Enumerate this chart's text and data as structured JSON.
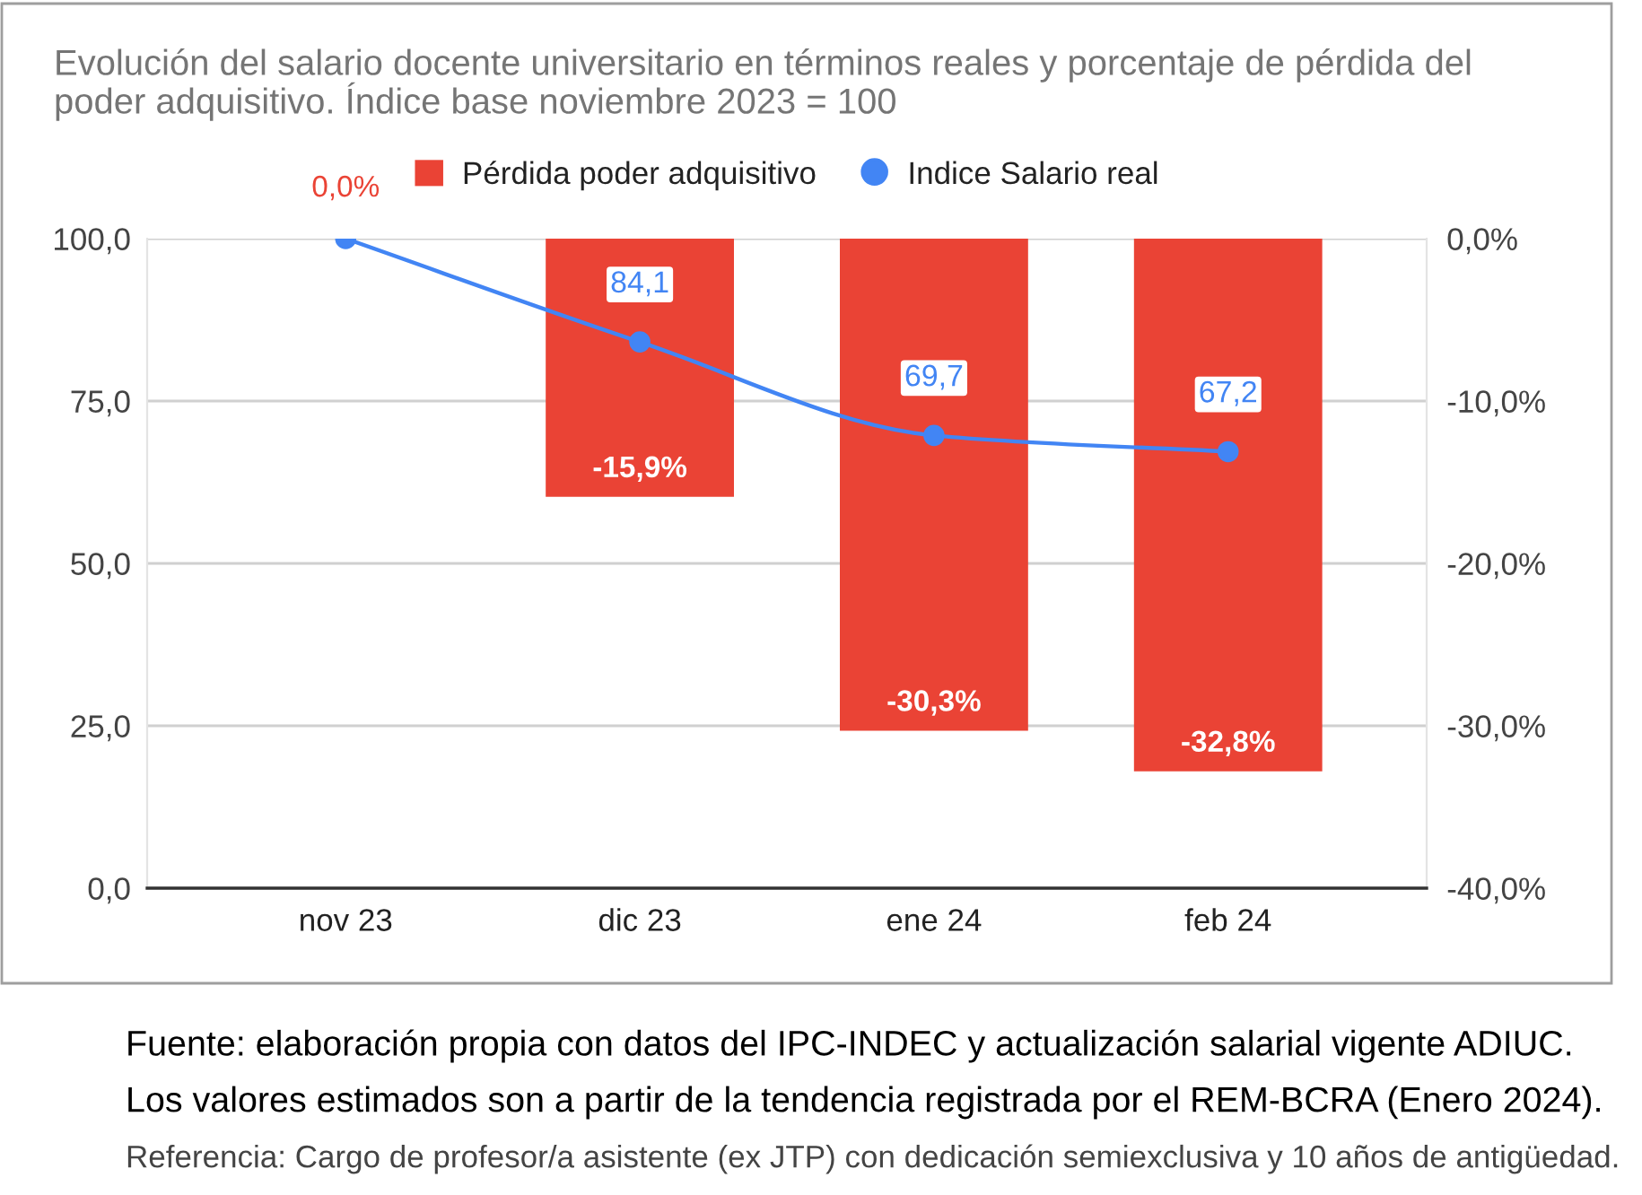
{
  "chart_data": {
    "type": "bar",
    "title": "Evolución del salario docente universitario en términos reales y porcentaje de pérdida del poder adquisitivo. Índice base noviembre 2023 = 100",
    "categories": [
      "nov 23",
      "dic 23",
      "ene 24",
      "feb 24"
    ],
    "series": [
      {
        "name": "Pérdida poder adquisitivo",
        "axis": "y2",
        "color": "#ea4335",
        "values": [
          0,
          -15.9,
          -30.3,
          -32.8
        ],
        "value_labels": [
          "0,0%",
          "-15,9%",
          "-30,3%",
          "-32,8%"
        ]
      },
      {
        "name": "Indice Salario real",
        "type": "line",
        "color": "#4285f4",
        "values": [
          100,
          84.1,
          69.7,
          67.2
        ],
        "value_labels": [
          null,
          "84,1",
          "69,7",
          "67,2"
        ],
        "marker": "circle",
        "line_style": "solid"
      }
    ],
    "ylim": [
      0,
      100
    ],
    "yticks": [
      {
        "value": 0,
        "label": "0,0"
      },
      {
        "value": 25,
        "label": "25,0"
      },
      {
        "value": 50,
        "label": "50,0"
      },
      {
        "value": 75,
        "label": "75,0"
      },
      {
        "value": 100,
        "label": "100,0"
      }
    ],
    "y2lim": [
      -40,
      0
    ],
    "y2ticks": [
      {
        "value": -40,
        "label": "-40,0%"
      },
      {
        "value": -30,
        "label": "-30,0%"
      },
      {
        "value": -20,
        "label": "-20,0%"
      },
      {
        "value": -10,
        "label": "-10,0%"
      },
      {
        "value": 0,
        "label": "0,0%"
      }
    ],
    "grid": "y",
    "legend": "top",
    "annotations": [
      "Fuente: elaboración propia con datos del IPC-INDEC y actualización salarial vigente ADIUC.",
      "Los valores estimados son a partir de la tendencia registrada por el REM-BCRA (Enero 2024).",
      "Referencia: Cargo de profesor/a asistente (ex JTP) con dedicación semiexclusiva y 10 años de antigüedad."
    ]
  }
}
